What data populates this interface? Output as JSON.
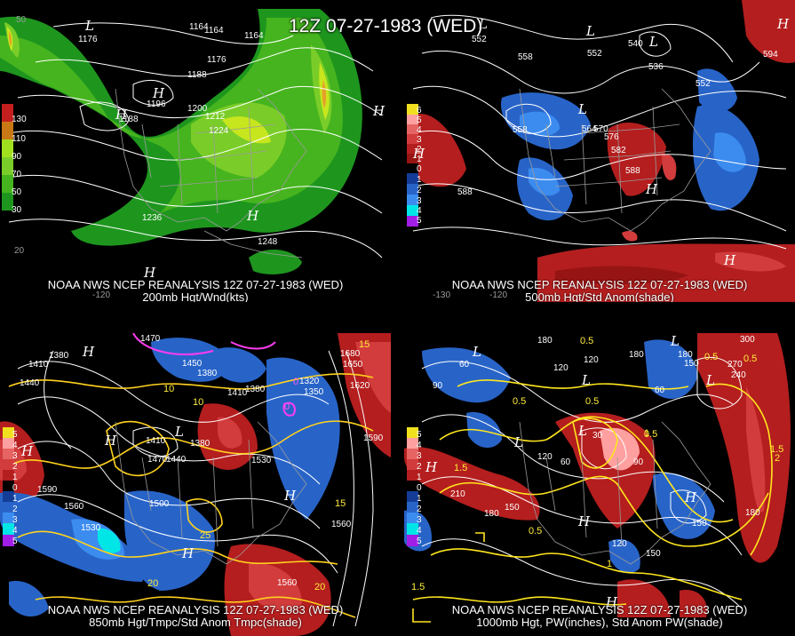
{
  "main_title": "12Z 07-27-1983 (WED)",
  "panels": [
    {
      "id": "p1",
      "title_line1": "NOAA NWS NCEP REANALYSIS 12Z 07-27-1983 (WED)",
      "title_line2": "200mb Hgt/Wnd(kts)",
      "legend": [
        "130",
        "110",
        "90",
        "70",
        "50",
        "30"
      ],
      "legend_colors": [
        "#c41e1e",
        "#c87814",
        "#a0e01e",
        "#7acd28",
        "#46b41e",
        "#1e961e"
      ],
      "contour_labels": [
        "1176",
        "1164",
        "1164",
        "1164",
        "1176",
        "1188",
        "1188",
        "1196",
        "1200",
        "1212",
        "1224",
        "1236",
        "1248",
        "1250",
        "1250",
        "1254",
        "1254",
        "1250"
      ],
      "centers": [
        "L",
        "H",
        "H",
        "H",
        "H",
        "H"
      ],
      "ticks": [
        "50",
        "20",
        "-120"
      ]
    },
    {
      "id": "p2",
      "title_line1": "NOAA NWS NCEP REANALYSIS 12Z 07-27-1983 (WED)",
      "title_line2": "500mb Hgt/Std Anom(shade)",
      "legend": [
        "6",
        "5",
        "4",
        "3",
        "2",
        "1",
        "0",
        "1",
        "2",
        "3",
        "4",
        "5"
      ],
      "legend_colors": [
        "#f0e01e",
        "#ffa0a0",
        "#e66464",
        "#d23c3c",
        "#b41e1e",
        "#961414",
        "#000000",
        "#143c96",
        "#2864c8",
        "#3c8cf0",
        "#00e6e6",
        "#a01ee6"
      ],
      "contour_labels": [
        "552",
        "558",
        "540",
        "552",
        "536",
        "552",
        "594",
        "562",
        "564",
        "558",
        "558",
        "564",
        "570",
        "576",
        "582",
        "588",
        "588",
        "593",
        "594",
        "591"
      ],
      "centers": [
        "L",
        "L",
        "L",
        "L",
        "H",
        "H",
        "H",
        "H"
      ],
      "ticks": [
        "-130",
        "-120"
      ]
    },
    {
      "id": "p3",
      "title_line1": "NOAA NWS NCEP REANALYSIS 12Z 07-27-1983 (WED)",
      "title_line2": "850mb Hgt/Tmpc/Std Anom Tmpc(shade)",
      "legend": [
        "5",
        "4",
        "3",
        "2",
        "1",
        "0",
        "1",
        "2",
        "3",
        "4",
        "5"
      ],
      "legend_colors": [
        "#f0e01e",
        "#ffa0a0",
        "#e66464",
        "#d23c3c",
        "#b41e1e",
        "#000000",
        "#143c96",
        "#2864c8",
        "#3c8cf0",
        "#00e6e6",
        "#a01ee6"
      ],
      "contour_labels": [
        "1470",
        "1410",
        "1380",
        "1440",
        "1450",
        "1380",
        "1410",
        "1380",
        "1320",
        "1350",
        "1680",
        "1650",
        "1620",
        "1590",
        "1530",
        "1410",
        "1470",
        "1440",
        "1380",
        "1590",
        "1560",
        "1530",
        "1500",
        "1560",
        "1560"
      ],
      "yellow_labels": [
        "15",
        "10",
        "10",
        "5",
        "15",
        "20",
        "25",
        "20",
        "20"
      ],
      "magenta_labels": [
        "0",
        "0"
      ],
      "centers": [
        "L",
        "H",
        "H",
        "H",
        "H",
        "H"
      ]
    },
    {
      "id": "p4",
      "title_line1": "NOAA NWS NCEP REANALYSIS 12Z 07-27-1983 (WED)",
      "title_line2": "1000mb Hgt, PW(inches), Std Anom PW(shade)",
      "legend": [
        "5",
        "4",
        "3",
        "2",
        "1",
        "0",
        "1",
        "2",
        "3",
        "4",
        "5"
      ],
      "legend_colors": [
        "#f0e01e",
        "#ffa0a0",
        "#e66464",
        "#d23c3c",
        "#b41e1e",
        "#000000",
        "#143c96",
        "#2864c8",
        "#3c8cf0",
        "#00e6e6",
        "#a01ee6"
      ],
      "contour_labels": [
        "180",
        "60",
        "120",
        "120",
        "180",
        "180",
        "150",
        "60",
        "300",
        "240",
        "270",
        "90",
        "120",
        "60",
        "30",
        "90",
        "210",
        "180",
        "150",
        "120",
        "150",
        "150",
        "180"
      ],
      "yellow_labels": [
        "0.5",
        "0.5",
        "0.5",
        "0.5",
        "0.5",
        "1",
        "1.5",
        "1",
        "1",
        "0.5",
        "1.5",
        "0.5",
        "1",
        "1.5",
        "2",
        "1.5",
        "0.5"
      ],
      "centers": [
        "L",
        "L",
        "L",
        "L",
        "L",
        "L",
        "H",
        "H",
        "H",
        "H"
      ]
    }
  ]
}
